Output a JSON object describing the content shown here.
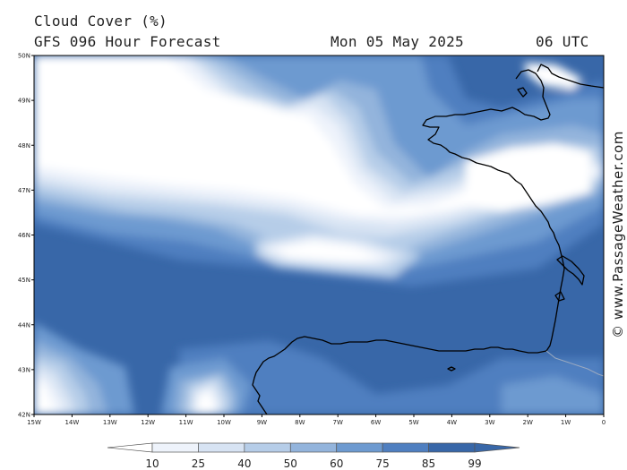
{
  "header": {
    "title": "Cloud Cover (%)",
    "model": "GFS 096 Hour Forecast",
    "date": "Mon 05 May 2025",
    "time": "06 UTC"
  },
  "watermark": "© www.PassageWeather.com",
  "map": {
    "lon_range": [
      -15,
      0
    ],
    "lat_range": [
      42,
      50
    ],
    "lon_labels": [
      "15W",
      "14W",
      "13W",
      "12W",
      "11W",
      "10W",
      "9W",
      "8W",
      "7W",
      "6W",
      "5W",
      "4W",
      "3W",
      "2W",
      "1W",
      "0"
    ],
    "lat_labels": [
      "42N",
      "43N",
      "44N",
      "45N",
      "46N",
      "47N",
      "48N",
      "49N",
      "50N"
    ]
  },
  "legend": {
    "labels": [
      "10",
      "25",
      "40",
      "50",
      "60",
      "75",
      "85",
      "99"
    ],
    "colors": [
      "#ffffff",
      "#eef3fb",
      "#d7e3f3",
      "#b6cde8",
      "#93b4dc",
      "#6d9ad0",
      "#4f7fc0",
      "#3867a8"
    ]
  },
  "colors": {
    "ocean_base": "#3867a8",
    "coast": "#000000",
    "border": "#9aa9c0"
  }
}
